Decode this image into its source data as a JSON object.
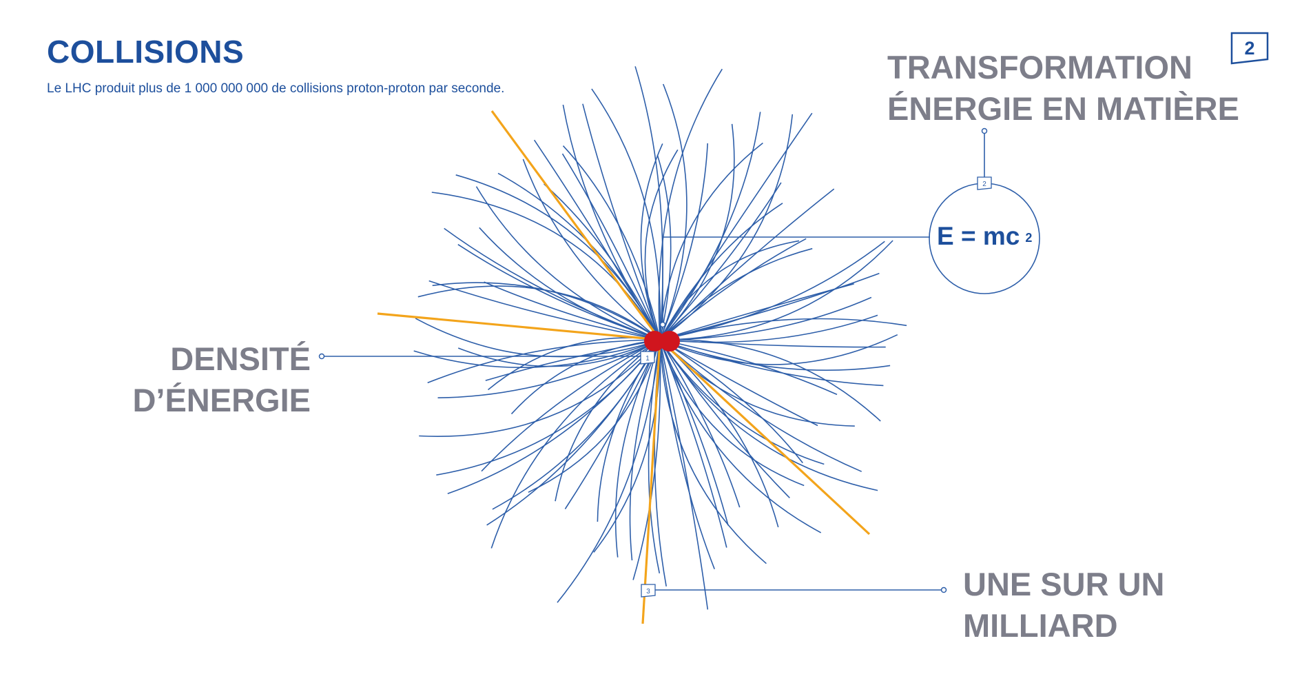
{
  "header": {
    "title": "COLLISIONS",
    "subtitle": "Le LHC produit plus de 1 000 000 000 de collisions proton-proton par seconde."
  },
  "page_number": "2",
  "labels": {
    "energy_density_line1": "DENSITÉ",
    "energy_density_line2": "D’ÉNERGIE",
    "transformation_line1": "TRANSFORMATION",
    "transformation_line2": "ÉNERGIE EN MATIÈRE",
    "one_in_billion_line1": "UNE SUR UN",
    "one_in_billion_line2": "MILLIARD"
  },
  "formula": {
    "base": "E = mc",
    "exponent": "2"
  },
  "markers": [
    {
      "id": "marker-1",
      "text": "1"
    },
    {
      "id": "marker-2",
      "text": "2"
    },
    {
      "id": "marker-3",
      "text": "3"
    }
  ],
  "colors": {
    "accent_blue": "#1d4f9c",
    "track_blue": "#2d5ea9",
    "highlight_orange": "#f3a41b",
    "proton_red": "#d0151e",
    "label_gray": "#7d7e8a"
  }
}
